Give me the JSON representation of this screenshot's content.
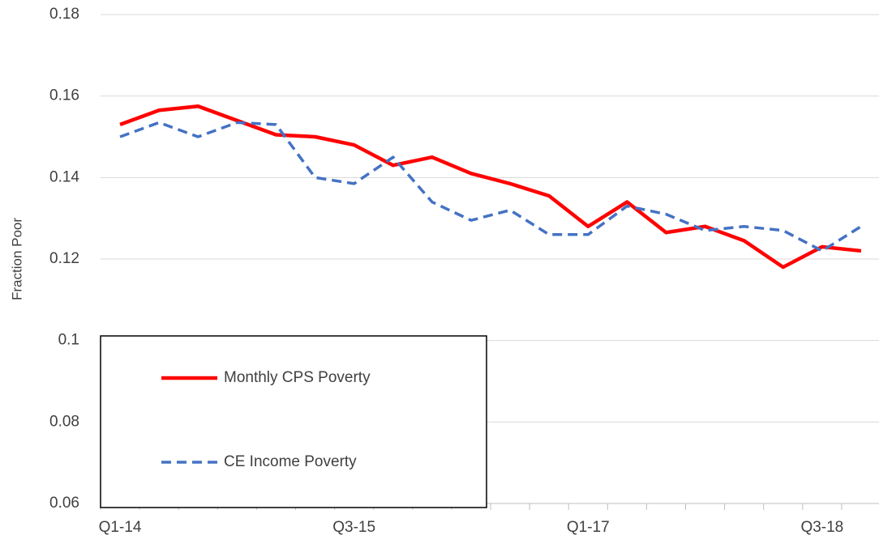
{
  "chart_data": {
    "type": "line",
    "y_label": "Fraction Poor",
    "categories": [
      "Q1-14",
      null,
      null,
      null,
      null,
      null,
      "Q3-15",
      null,
      null,
      null,
      null,
      null,
      "Q1-17",
      null,
      null,
      null,
      null,
      null,
      "Q3-18",
      null
    ],
    "series": [
      {
        "name": "Monthly CPS Poverty",
        "color": "#ff0000",
        "dash": "solid",
        "values": [
          0.153,
          0.1565,
          0.1575,
          0.154,
          0.1505,
          0.15,
          0.148,
          0.143,
          0.145,
          0.141,
          0.1385,
          0.1355,
          0.128,
          0.134,
          0.1265,
          0.128,
          0.1245,
          0.118,
          0.123,
          0.122
        ]
      },
      {
        "name": "CE Income Poverty",
        "color": "#4472c4",
        "dash": "dashed",
        "values": [
          0.15,
          0.1535,
          0.15,
          0.1535,
          0.153,
          0.14,
          0.1385,
          0.145,
          0.134,
          0.1295,
          0.132,
          0.126,
          0.126,
          0.133,
          0.131,
          0.127,
          0.128,
          0.127,
          0.122,
          0.128
        ]
      }
    ],
    "ylim": [
      0.06,
      0.18
    ],
    "yticks": [
      0.06,
      0.08,
      0.1,
      0.12,
      0.14,
      0.16,
      0.18
    ],
    "grid": true,
    "legend": "lower-left"
  }
}
